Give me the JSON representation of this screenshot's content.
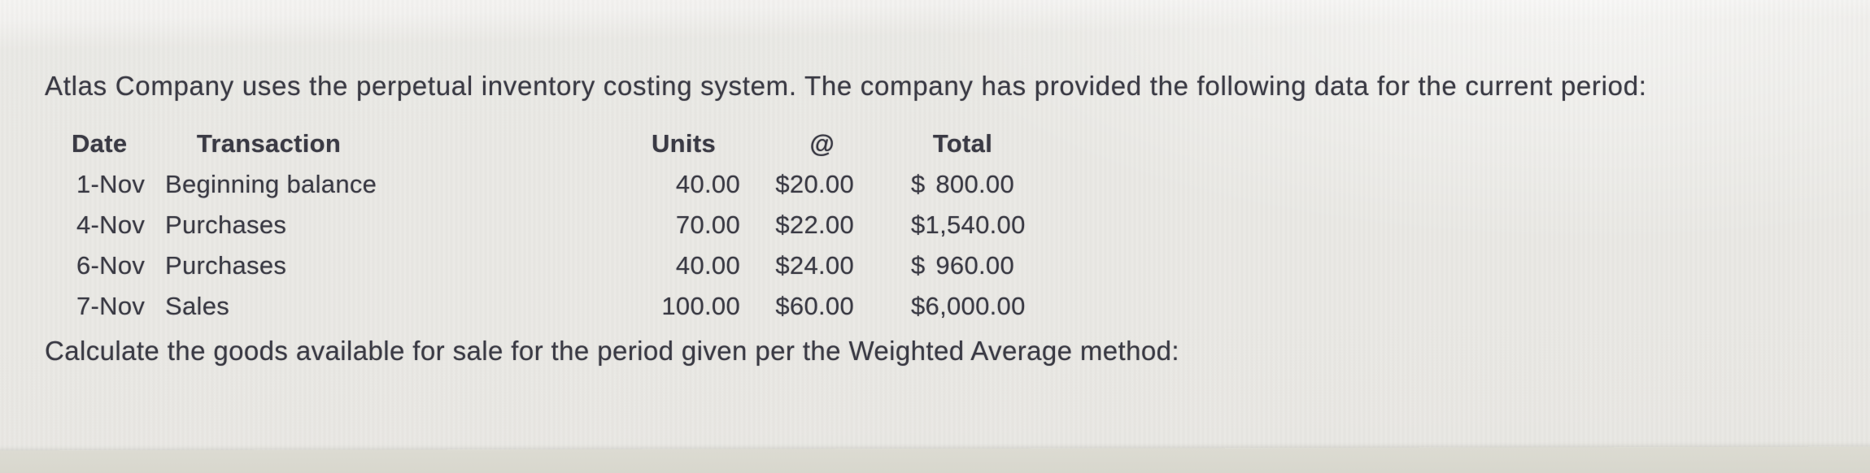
{
  "page": {
    "intro_text": "Atlas Company uses the perpetual inventory costing system. The company has provided the following data for the current period:",
    "question_text": "Calculate the goods available for sale for the period given per the Weighted Average method:"
  },
  "table": {
    "headers": {
      "date": "Date",
      "transaction": "Transaction",
      "units": "Units",
      "at": "@",
      "total": "Total"
    },
    "rows": [
      {
        "date": "1-Nov",
        "transaction": "Beginning balance",
        "units": "40.00",
        "at": "$20.00",
        "total_currency": "$",
        "total_amount": "800.00"
      },
      {
        "date": "4-Nov",
        "transaction": "Purchases",
        "units": "70.00",
        "at": "$22.00",
        "total_currency": "$",
        "total_amount": "1,540.00"
      },
      {
        "date": "6-Nov",
        "transaction": "Purchases",
        "units": "40.00",
        "at": "$24.00",
        "total_currency": "$",
        "total_amount": "960.00"
      },
      {
        "date": "7-Nov",
        "transaction": "Sales",
        "units": "100.00",
        "at": "$60.00",
        "total_currency": "$",
        "total_amount": "6,000.00"
      }
    ]
  },
  "colors": {
    "text": "#3a3a44",
    "background": "#eae9e5",
    "bottom_strip": "#d6d5cb"
  }
}
